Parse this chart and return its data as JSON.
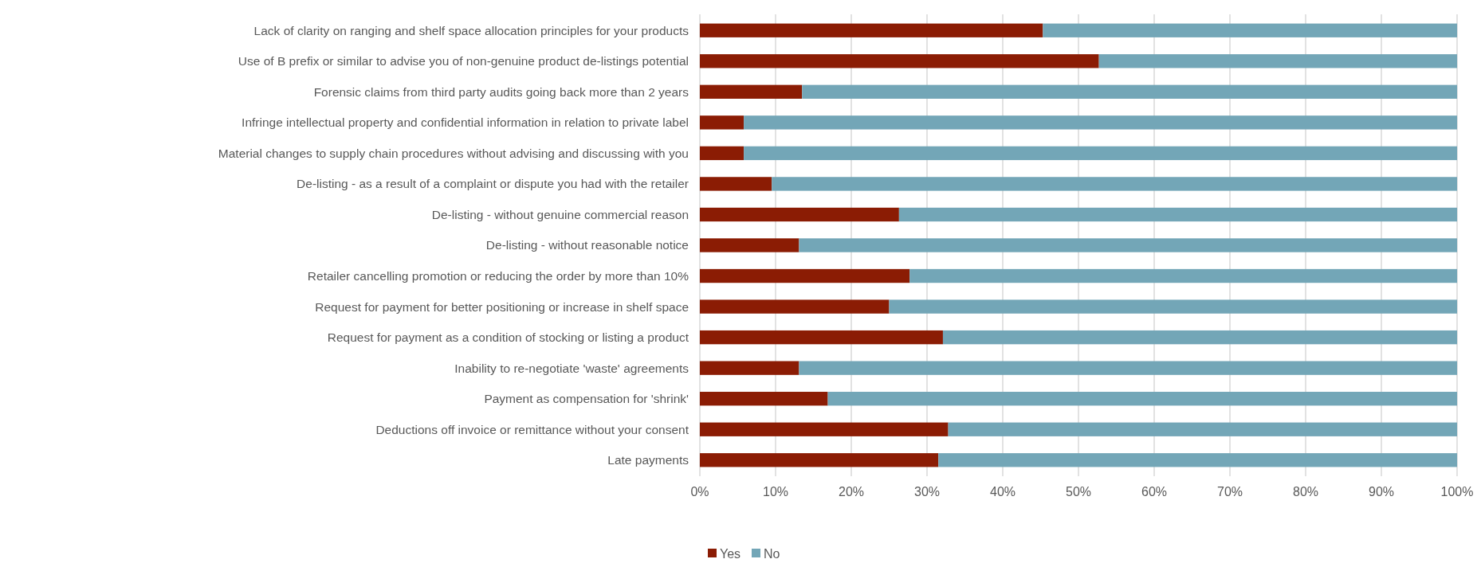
{
  "chart_data": {
    "type": "bar",
    "orientation": "horizontal",
    "stacked": true,
    "categories": [
      "Lack of clarity on ranging and shelf space allocation principles for your products",
      "Use of B prefix or similar to advise you of non-genuine product de-listings potential",
      "Forensic claims from third party audits going back more than 2 years ",
      "Infringe intellectual property and confidential information in relation to private label",
      "Material changes to supply chain procedures without advising and discussing with you",
      "De-listing - as a result of a complaint or dispute you had with the retailer",
      "De-listing - without genuine commercial reason",
      "De-listing - without reasonable notice",
      "Retailer cancelling promotion or reducing the order by more than 10%",
      "Request for payment for better positioning or increase in shelf space ",
      "Request for payment as a condition of stocking or listing a product ",
      "Inability to re-negotiate 'waste' agreements",
      "Payment as compensation for 'shrink'",
      "Deductions off invoice or remittance without your consent",
      "Late payments "
    ],
    "series": [
      {
        "name": "Yes",
        "color": "#8b1c04",
        "values": [
          45.3,
          52.7,
          13.5,
          5.8,
          5.8,
          9.5,
          26.3,
          13.1,
          27.7,
          25.0,
          32.1,
          13.1,
          16.9,
          32.8,
          31.5
        ]
      },
      {
        "name": "No",
        "color": "#73a6b7",
        "values": [
          54.7,
          47.3,
          86.5,
          94.2,
          94.2,
          90.5,
          73.7,
          86.9,
          72.3,
          75.0,
          67.9,
          86.9,
          83.1,
          67.2,
          68.5
        ]
      }
    ],
    "xlim": [
      0,
      100
    ],
    "xticks": [
      {
        "value": 0,
        "label": "0%"
      },
      {
        "value": 10,
        "label": "10%"
      },
      {
        "value": 20,
        "label": "20%"
      },
      {
        "value": 30,
        "label": "30%"
      },
      {
        "value": 40,
        "label": "40%"
      },
      {
        "value": 50,
        "label": "50%"
      },
      {
        "value": 60,
        "label": "60%"
      },
      {
        "value": 70,
        "label": "70%"
      },
      {
        "value": 80,
        "label": "80%"
      },
      {
        "value": 90,
        "label": "90%"
      },
      {
        "value": 100,
        "label": "100%"
      }
    ],
    "grid": "x",
    "legend": "bottom"
  }
}
